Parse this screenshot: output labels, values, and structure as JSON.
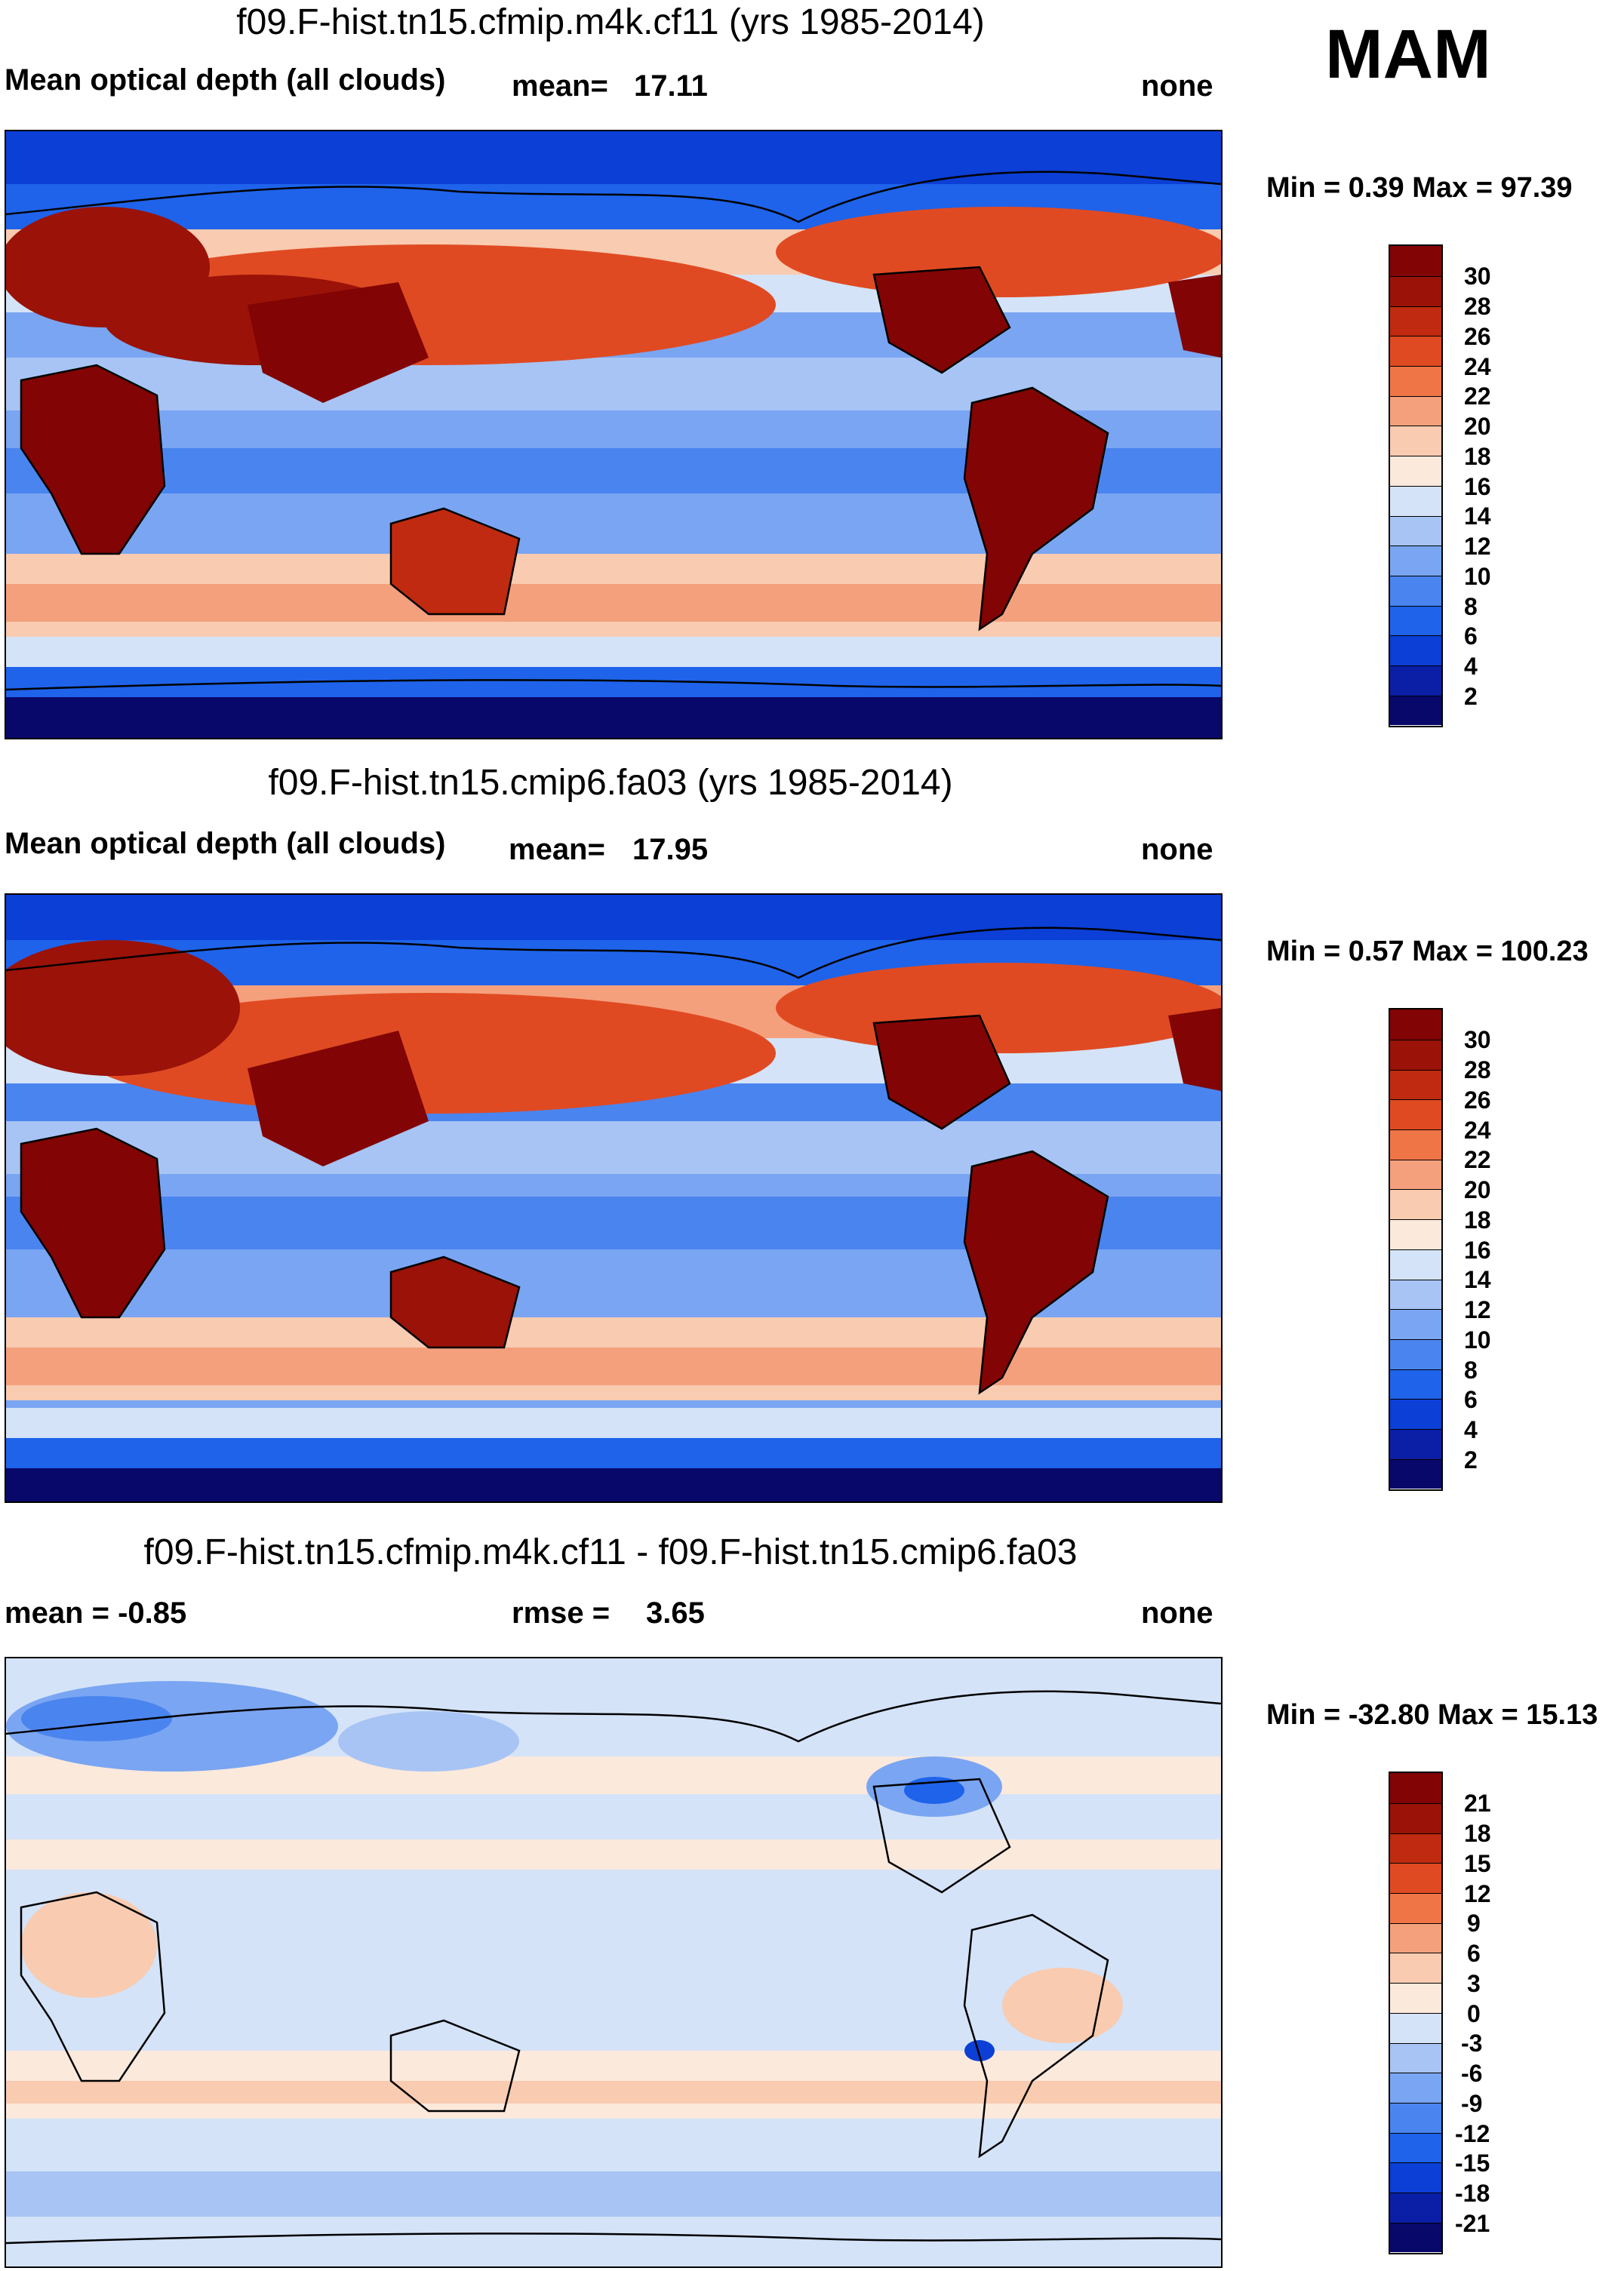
{
  "season": "MAM",
  "panels": [
    {
      "title": "f09.F-hist.tn15.cfmip.m4k.cf11 (yrs 1985-2014)",
      "left_label": "Mean optical depth (all clouds)",
      "stat_label": "mean=",
      "stat_value": "17.11",
      "right_label": "none",
      "minmax": "Min =   0.39 Max =  97.39",
      "kind": "abs",
      "levels": [
        "2",
        "4",
        "6",
        "8",
        "10",
        "12",
        "14",
        "16",
        "18",
        "20",
        "22",
        "24",
        "26",
        "28",
        "30"
      ]
    },
    {
      "title": "f09.F-hist.tn15.cmip6.fa03 (yrs 1985-2014)",
      "left_label": "Mean optical depth (all clouds)",
      "stat_label": "mean=",
      "stat_value": "17.95",
      "right_label": "none",
      "minmax": "Min =   0.57 Max = 100.23",
      "kind": "abs",
      "levels": [
        "2",
        "4",
        "6",
        "8",
        "10",
        "12",
        "14",
        "16",
        "18",
        "20",
        "22",
        "24",
        "26",
        "28",
        "30"
      ]
    },
    {
      "title": "f09.F-hist.tn15.cfmip.m4k.cf11 - f09.F-hist.tn15.cmip6.fa03",
      "left_label": "mean =  -0.85",
      "stat_label": "rmse =",
      "stat_value": "3.65",
      "right_label": "none",
      "minmax": "Min = -32.80 Max =  15.13",
      "kind": "diff",
      "levels": [
        "-21",
        "-18",
        "-15",
        "-12",
        "-9",
        "-6",
        "-3",
        "0",
        "3",
        "6",
        "9",
        "12",
        "15",
        "18",
        "21"
      ]
    }
  ],
  "colors": {
    "abs_scale": [
      "#08086b",
      "#0a1fa6",
      "#0b3fd6",
      "#1e63ea",
      "#4a84ef",
      "#7aa5f2",
      "#a7c4f4",
      "#d4e3f8",
      "#fbe9dc",
      "#f9cbb0",
      "#f5a07d",
      "#ef7547",
      "#e04a22",
      "#c02a10",
      "#9a1208",
      "#820404"
    ],
    "diff_scale": [
      "#08086b",
      "#0a1fa6",
      "#0b3fd6",
      "#1e63ea",
      "#4a84ef",
      "#7aa5f2",
      "#a7c4f4",
      "#d4e3f8",
      "#fbe9dc",
      "#f9cbb0",
      "#f5a07d",
      "#ef7547",
      "#e04a22",
      "#c02a10",
      "#9a1208",
      "#820404"
    ]
  }
}
